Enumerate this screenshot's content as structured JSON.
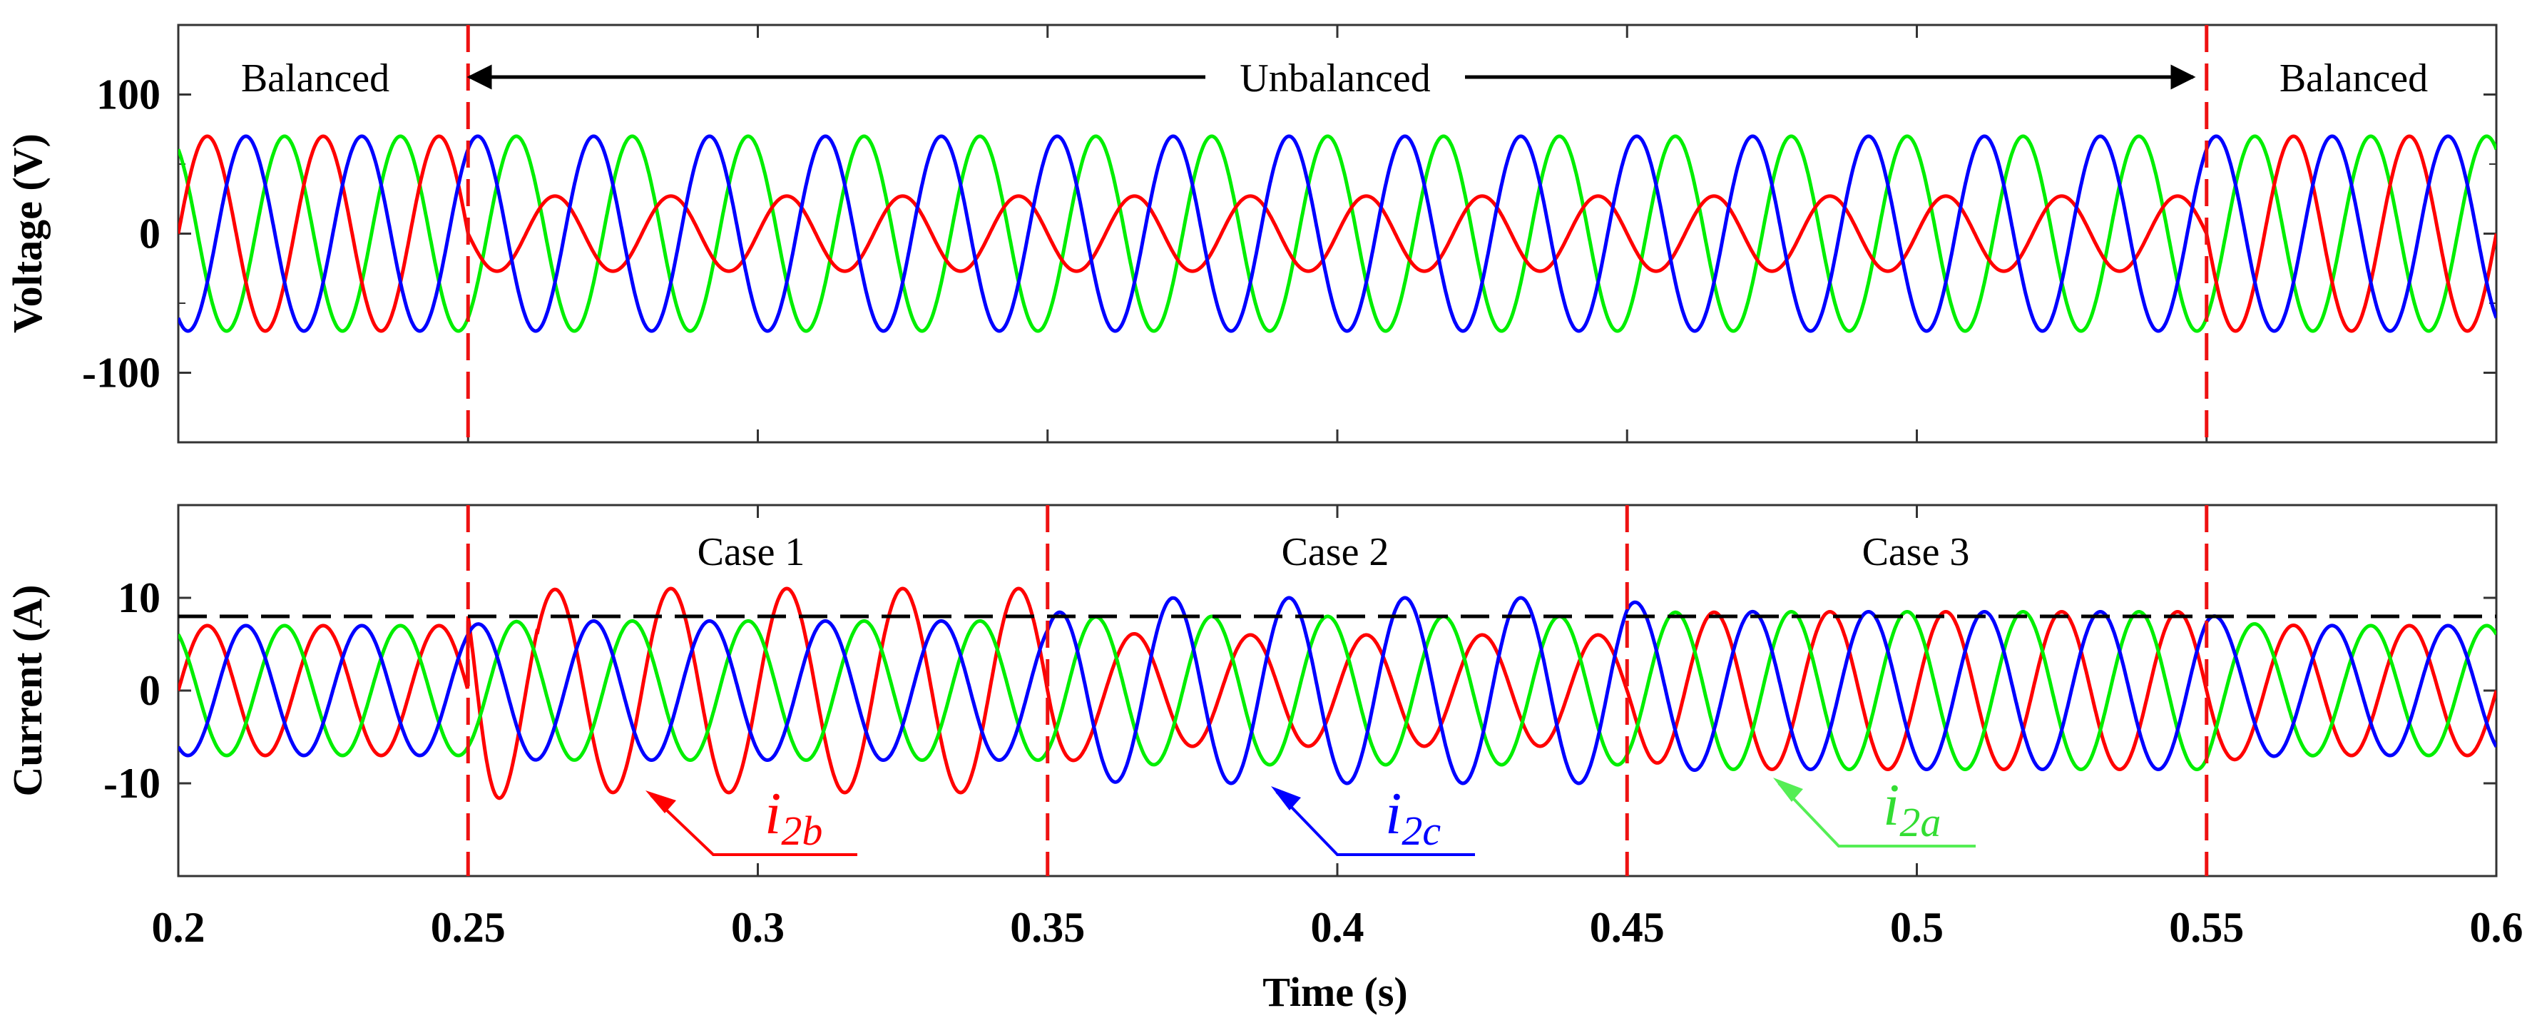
{
  "chart_data": [
    {
      "type": "line",
      "panel": "voltage",
      "ylabel": "Voltage (V)",
      "xlim": [
        0.2,
        0.6
      ],
      "ylim": [
        -150,
        150
      ],
      "yticks": [
        100,
        0,
        -100
      ],
      "ytick_labels": [
        "100",
        "0",
        "-100"
      ],
      "frequency_hz": 50,
      "event_times": [
        0.25,
        0.55
      ],
      "regions": [
        {
          "label": "Balanced",
          "from": 0.2,
          "to": 0.25
        },
        {
          "label": "Unbalanced",
          "from": 0.25,
          "to": 0.55
        },
        {
          "label": "Balanced",
          "from": 0.55,
          "to": 0.6
        }
      ],
      "series": [
        {
          "name": "phase-a",
          "color": "#00ee00",
          "amplitude_balanced": 70,
          "amplitude_unbalanced": 70,
          "phase_deg": 120
        },
        {
          "name": "phase-b",
          "color": "#ff0000",
          "amplitude_balanced": 70,
          "amplitude_unbalanced": 27,
          "phase_deg": 0
        },
        {
          "name": "phase-c",
          "color": "#0000ff",
          "amplitude_balanced": 70,
          "amplitude_unbalanced": 70,
          "phase_deg": -120
        }
      ]
    },
    {
      "type": "line",
      "panel": "current",
      "xlabel": "Time (s)",
      "ylabel": "Current (A)",
      "xlim": [
        0.2,
        0.6
      ],
      "ylim": [
        -20,
        20
      ],
      "xticks": [
        0.2,
        0.25,
        0.3,
        0.35,
        0.4,
        0.45,
        0.5,
        0.55,
        0.6
      ],
      "xtick_labels": [
        "0.2",
        "0.25",
        "0.3",
        "0.35",
        "0.4",
        "0.45",
        "0.5",
        "0.55",
        "0.6"
      ],
      "yticks": [
        10,
        0,
        -10
      ],
      "ytick_labels": [
        "10",
        "0",
        "-10"
      ],
      "reference_line": 8,
      "frequency_hz": 50,
      "event_times": [
        0.25,
        0.35,
        0.45,
        0.55
      ],
      "cases": [
        {
          "label": "Case 1",
          "from": 0.25,
          "to": 0.35
        },
        {
          "label": "Case 2",
          "from": 0.35,
          "to": 0.45
        },
        {
          "label": "Case 3",
          "from": 0.45,
          "to": 0.55
        }
      ],
      "series": [
        {
          "name": "i2a",
          "label_main": "i",
          "label_sub": "2a",
          "color": "#00ee00",
          "phase_deg": 120,
          "amplitude_by_segment": [
            7,
            7.5,
            8,
            8.5,
            7
          ]
        },
        {
          "name": "i2b",
          "label_main": "i",
          "label_sub": "2b",
          "color": "#ff0000",
          "phase_deg": 0,
          "amplitude_by_segment": [
            7,
            11,
            6,
            8.5,
            7
          ]
        },
        {
          "name": "i2c",
          "label_main": "i",
          "label_sub": "2c",
          "color": "#0000ff",
          "phase_deg": -120,
          "amplitude_by_segment": [
            7,
            7.5,
            10,
            8.5,
            7
          ]
        }
      ]
    }
  ],
  "labels": {
    "balanced_left": "Balanced",
    "unbalanced": "Unbalanced",
    "balanced_right": "Balanced",
    "case1": "Case 1",
    "case2": "Case 2",
    "case3": "Case 3"
  }
}
